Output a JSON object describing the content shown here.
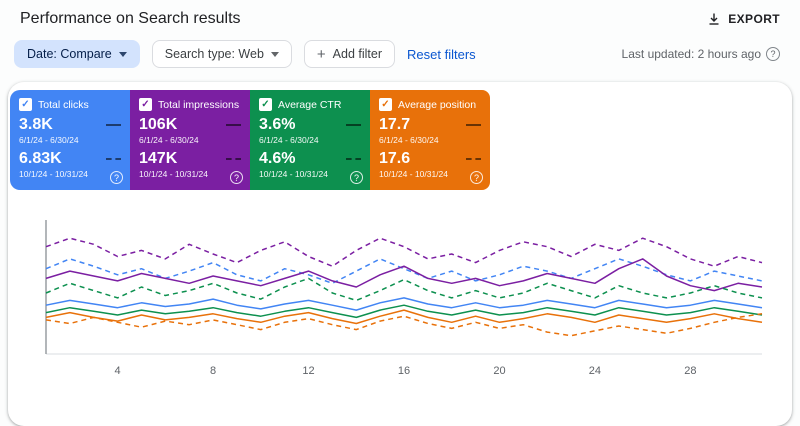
{
  "header": {
    "title": "Performance on Search results",
    "export_label": "EXPORT"
  },
  "filters": {
    "date_label": "Date: Compare",
    "search_type_label": "Search type: Web",
    "add_filter_label": "Add filter",
    "reset_label": "Reset filters",
    "last_updated": "Last updated: 2 hours ago"
  },
  "cards": [
    {
      "label": "Total clicks",
      "color": "#4285f4",
      "value1": "3.8K",
      "range1": "6/1/24 - 6/30/24",
      "value2": "6.83K",
      "range2": "10/1/24 - 10/31/24",
      "help": "?"
    },
    {
      "label": "Total impressions",
      "color": "#7b1fa2",
      "value1": "106K",
      "range1": "6/1/24 - 6/30/24",
      "value2": "147K",
      "range2": "10/1/24 - 10/31/24",
      "help": "?"
    },
    {
      "label": "Average CTR",
      "color": "#0d904f",
      "value1": "3.6%",
      "range1": "6/1/24 - 6/30/24",
      "value2": "4.6%",
      "range2": "10/1/24 - 10/31/24",
      "help": "?"
    },
    {
      "label": "Average position",
      "color": "#e8710a",
      "value1": "17.7",
      "range1": "6/1/24 - 6/30/24",
      "value2": "17.6",
      "range2": "10/1/24 - 10/31/24",
      "help": "?"
    }
  ],
  "chart_data": {
    "type": "line",
    "title": "",
    "x_range": [
      1,
      31
    ],
    "y_range": [
      0,
      105
    ],
    "x_ticks": [
      4,
      8,
      12,
      16,
      20,
      24,
      28
    ],
    "y_axis_labels": [],
    "grid": false,
    "legend_position": "cards-above",
    "series": [
      {
        "name": "Total clicks 6/1/24 - 6/30/24",
        "color": "#4285f4",
        "style": "solid",
        "values": [
          40,
          44,
          41,
          38,
          42,
          39,
          41,
          45,
          40,
          37,
          41,
          44,
          40,
          36,
          42,
          46,
          41,
          38,
          42,
          38,
          40,
          44,
          41,
          38,
          44,
          41,
          38,
          40,
          44,
          41,
          38
        ]
      },
      {
        "name": "Total clicks 10/1/24 - 10/31/24",
        "color": "#4285f4",
        "style": "dashed",
        "values": [
          70,
          78,
          72,
          65,
          70,
          62,
          68,
          75,
          65,
          60,
          70,
          65,
          58,
          68,
          78,
          70,
          62,
          68,
          60,
          65,
          72,
          68,
          62,
          70,
          78,
          72,
          65,
          60,
          68,
          64,
          60
        ]
      },
      {
        "name": "Total impressions 6/1/24 - 6/30/24",
        "color": "#7b1fa2",
        "style": "solid",
        "values": [
          62,
          68,
          64,
          60,
          66,
          62,
          58,
          64,
          60,
          56,
          62,
          68,
          60,
          55,
          65,
          72,
          62,
          58,
          62,
          56,
          60,
          66,
          62,
          58,
          70,
          78,
          64,
          56,
          52,
          58,
          55
        ]
      },
      {
        "name": "Total impressions 10/1/24 - 10/31/24",
        "color": "#7b1fa2",
        "style": "dashed",
        "values": [
          88,
          95,
          90,
          80,
          85,
          78,
          90,
          82,
          75,
          85,
          92,
          80,
          72,
          85,
          95,
          88,
          78,
          82,
          75,
          85,
          92,
          88,
          80,
          90,
          85,
          95,
          88,
          78,
          72,
          80,
          75
        ]
      },
      {
        "name": "Average CTR 6/1/24 - 6/30/24",
        "color": "#0d904f",
        "style": "solid",
        "values": [
          34,
          38,
          35,
          32,
          36,
          33,
          35,
          38,
          34,
          31,
          35,
          38,
          34,
          30,
          36,
          40,
          35,
          32,
          36,
          32,
          34,
          38,
          35,
          32,
          38,
          35,
          32,
          34,
          38,
          35,
          32
        ]
      },
      {
        "name": "Average CTR 10/1/24 - 10/31/24",
        "color": "#0d904f",
        "style": "dashed",
        "values": [
          50,
          58,
          52,
          46,
          55,
          48,
          52,
          58,
          50,
          45,
          55,
          62,
          50,
          44,
          52,
          61,
          52,
          46,
          52,
          46,
          50,
          58,
          52,
          46,
          56,
          50,
          46,
          50,
          56,
          50,
          46
        ]
      },
      {
        "name": "Average position 6/1/24 - 6/30/24",
        "color": "#e8710a",
        "style": "solid",
        "values": [
          30,
          34,
          30,
          27,
          32,
          28,
          30,
          33,
          29,
          26,
          31,
          34,
          29,
          25,
          31,
          36,
          30,
          26,
          31,
          26,
          29,
          33,
          30,
          26,
          32,
          29,
          26,
          29,
          33,
          29,
          26
        ]
      },
      {
        "name": "Average position 10/1/24 - 10/31/24",
        "color": "#e8710a",
        "style": "dashed",
        "values": [
          28,
          25,
          30,
          26,
          22,
          27,
          24,
          28,
          24,
          20,
          26,
          29,
          24,
          20,
          27,
          31,
          25,
          21,
          26,
          21,
          24,
          18,
          15,
          19,
          23,
          20,
          17,
          21,
          26,
          30,
          33
        ]
      }
    ]
  }
}
